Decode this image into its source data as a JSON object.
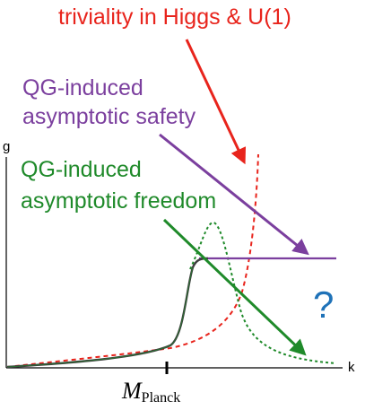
{
  "axes": {
    "y_label": "g",
    "x_label": "k",
    "x_tick_main": "M",
    "x_tick_sub": "Planck"
  },
  "annotations": {
    "triviality": "triviality in Higgs & U(1)",
    "safety_line1": "QG-induced",
    "safety_line2": "asymptotic safety",
    "freedom_line1": "QG-induced",
    "freedom_line2": "asymptotic freedom",
    "unknown": "?"
  },
  "colors": {
    "triviality": "#e8241c",
    "safety": "#7b3f9e",
    "freedom": "#1f8a2a",
    "common": "#3f3f3f",
    "unknown": "#1f72b8",
    "axis": "#000000"
  }
}
